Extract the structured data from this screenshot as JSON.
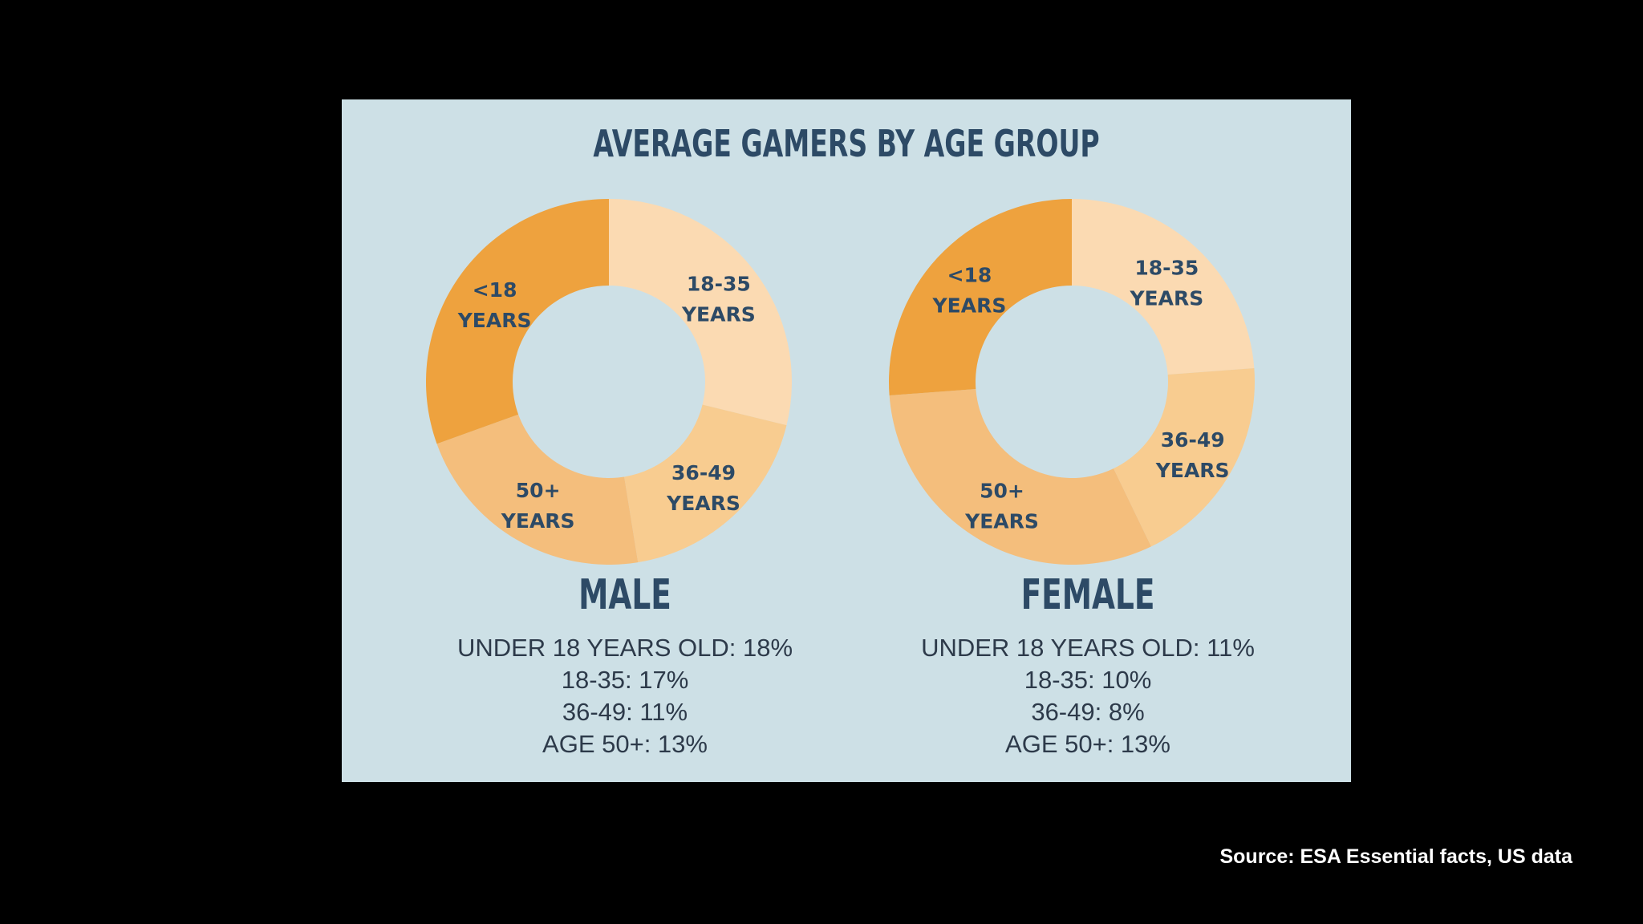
{
  "title": "AVERAGE GAMERS BY AGE GROUP",
  "colors": {
    "under_18": "#eea23e",
    "18_35": "#fbdab2",
    "36_49": "#f8cc90",
    "50_plus": "#f4be7c",
    "panel_bg": "#cde0e6",
    "text_dark": "#2d4a66"
  },
  "chart_data": [
    {
      "type": "pie",
      "title": "MALE",
      "categories": [
        "<18 YEARS",
        "18-35 YEARS",
        "36-49 YEARS",
        "50+ YEARS"
      ],
      "values": [
        18,
        17,
        11,
        13
      ],
      "unit": "%"
    },
    {
      "type": "pie",
      "title": "FEMALE",
      "categories": [
        "<18 YEARS",
        "18-35 YEARS",
        "36-49 YEARS",
        "50+ YEARS"
      ],
      "values": [
        11,
        10,
        8,
        13
      ],
      "unit": "%"
    }
  ],
  "male": {
    "title": "MALE",
    "slice_labels": [
      {
        "line1": "<18",
        "line2": "YEARS"
      },
      {
        "line1": "18-35",
        "line2": "YEARS"
      },
      {
        "line1": "36-49",
        "line2": "YEARS"
      },
      {
        "line1": "50+",
        "line2": "YEARS"
      }
    ],
    "stats": [
      "UNDER 18 YEARS OLD: 18%",
      "18-35: 17%",
      "36-49: 11%",
      "AGE 50+: 13%"
    ]
  },
  "female": {
    "title": "FEMALE",
    "slice_labels": [
      {
        "line1": "<18",
        "line2": "YEARS"
      },
      {
        "line1": "18-35",
        "line2": "YEARS"
      },
      {
        "line1": "36-49",
        "line2": "YEARS"
      },
      {
        "line1": "50+",
        "line2": "YEARS"
      }
    ],
    "stats": [
      "UNDER 18 YEARS OLD: 11%",
      "18-35: 10%",
      "36-49: 8%",
      "AGE 50+: 13%"
    ]
  },
  "source": "Source: ESA Essential facts, US data"
}
